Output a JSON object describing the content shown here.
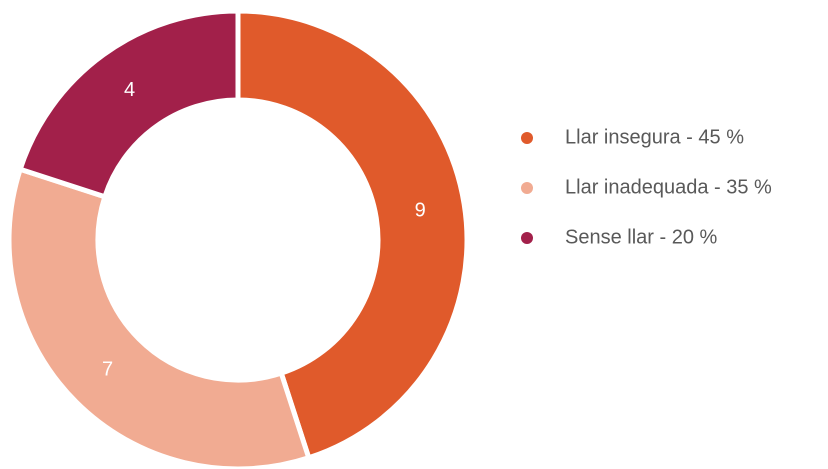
{
  "chart_data": {
    "type": "pie",
    "donut": true,
    "categories": [
      "Llar insegura - 45 %",
      "Llar inadequada - 35 %",
      "Sense llar - 20 %"
    ],
    "values": [
      9,
      7,
      4
    ],
    "colors": [
      "#e05a2b",
      "#f1ab92",
      "#a2204a"
    ],
    "legend": "right"
  }
}
